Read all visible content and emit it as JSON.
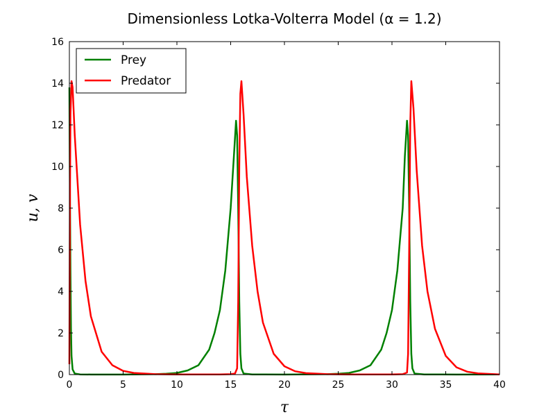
{
  "chart_data": {
    "type": "line",
    "title": "Dimensionless Lotka-Volterra Model (α = 1.2)",
    "xlabel": "τ",
    "ylabel": "u, v",
    "xlim": [
      0,
      40
    ],
    "ylim": [
      0,
      16
    ],
    "xticks": [
      "0",
      "5",
      "10",
      "15",
      "20",
      "25",
      "30",
      "35",
      "40"
    ],
    "yticks": [
      "0",
      "2",
      "4",
      "6",
      "8",
      "10",
      "12",
      "14",
      "16"
    ],
    "grid": false,
    "legend_position": "top-left",
    "series": [
      {
        "name": "Prey",
        "color": "#008000",
        "points": [
          [
            0,
            13.8
          ],
          [
            0.05,
            9
          ],
          [
            0.1,
            5
          ],
          [
            0.15,
            2.2
          ],
          [
            0.2,
            0.9
          ],
          [
            0.3,
            0.25
          ],
          [
            0.5,
            0.05
          ],
          [
            1,
            0.01
          ],
          [
            2,
            0.005
          ],
          [
            5,
            0.005
          ],
          [
            8,
            0.02
          ],
          [
            9,
            0.04
          ],
          [
            10,
            0.08
          ],
          [
            11,
            0.2
          ],
          [
            12,
            0.45
          ],
          [
            13,
            1.2
          ],
          [
            13.5,
            2.0
          ],
          [
            14,
            3.1
          ],
          [
            14.5,
            5.0
          ],
          [
            15,
            8.0
          ],
          [
            15.3,
            10.5
          ],
          [
            15.5,
            12.2
          ],
          [
            15.6,
            11.5
          ],
          [
            15.7,
            8.0
          ],
          [
            15.8,
            3.5
          ],
          [
            15.9,
            1.0
          ],
          [
            16.0,
            0.3
          ],
          [
            16.2,
            0.05
          ],
          [
            17,
            0.01
          ],
          [
            20,
            0.005
          ],
          [
            24,
            0.02
          ],
          [
            25,
            0.04
          ],
          [
            26,
            0.08
          ],
          [
            27,
            0.2
          ],
          [
            28,
            0.45
          ],
          [
            29,
            1.2
          ],
          [
            29.5,
            2.0
          ],
          [
            30,
            3.1
          ],
          [
            30.5,
            5.0
          ],
          [
            31,
            8.0
          ],
          [
            31.2,
            10.5
          ],
          [
            31.4,
            12.2
          ],
          [
            31.5,
            11.5
          ],
          [
            31.6,
            8.0
          ],
          [
            31.7,
            3.5
          ],
          [
            31.8,
            1.0
          ],
          [
            31.9,
            0.3
          ],
          [
            32.1,
            0.05
          ],
          [
            33,
            0.01
          ],
          [
            36,
            0.005
          ],
          [
            40,
            0.01
          ]
        ]
      },
      {
        "name": "Predator",
        "color": "#ff0000",
        "points": [
          [
            0,
            0.5
          ],
          [
            0.05,
            8
          ],
          [
            0.1,
            12.5
          ],
          [
            0.2,
            14.1
          ],
          [
            0.3,
            13.8
          ],
          [
            0.5,
            11.5
          ],
          [
            1,
            7.2
          ],
          [
            1.5,
            4.5
          ],
          [
            2,
            2.8
          ],
          [
            3,
            1.1
          ],
          [
            4,
            0.45
          ],
          [
            5,
            0.18
          ],
          [
            6,
            0.08
          ],
          [
            8,
            0.02
          ],
          [
            10,
            0.01
          ],
          [
            12,
            0.01
          ],
          [
            14,
            0.01
          ],
          [
            15,
            0.02
          ],
          [
            15.4,
            0.05
          ],
          [
            15.6,
            0.3
          ],
          [
            15.7,
            3.5
          ],
          [
            15.8,
            10.0
          ],
          [
            15.9,
            13.5
          ],
          [
            16.0,
            14.1
          ],
          [
            16.2,
            12.5
          ],
          [
            16.5,
            9.5
          ],
          [
            17,
            6.2
          ],
          [
            17.5,
            4.0
          ],
          [
            18,
            2.5
          ],
          [
            19,
            1.0
          ],
          [
            20,
            0.4
          ],
          [
            21,
            0.16
          ],
          [
            22,
            0.07
          ],
          [
            24,
            0.02
          ],
          [
            26,
            0.01
          ],
          [
            30,
            0.01
          ],
          [
            31,
            0.02
          ],
          [
            31.4,
            0.1
          ],
          [
            31.5,
            1.0
          ],
          [
            31.6,
            6.0
          ],
          [
            31.7,
            12.0
          ],
          [
            31.8,
            14.1
          ],
          [
            32.0,
            12.8
          ],
          [
            32.3,
            9.8
          ],
          [
            32.8,
            6.2
          ],
          [
            33.3,
            4.0
          ],
          [
            34,
            2.2
          ],
          [
            35,
            0.9
          ],
          [
            36,
            0.35
          ],
          [
            37,
            0.14
          ],
          [
            38,
            0.06
          ],
          [
            40,
            0.01
          ]
        ]
      }
    ]
  }
}
